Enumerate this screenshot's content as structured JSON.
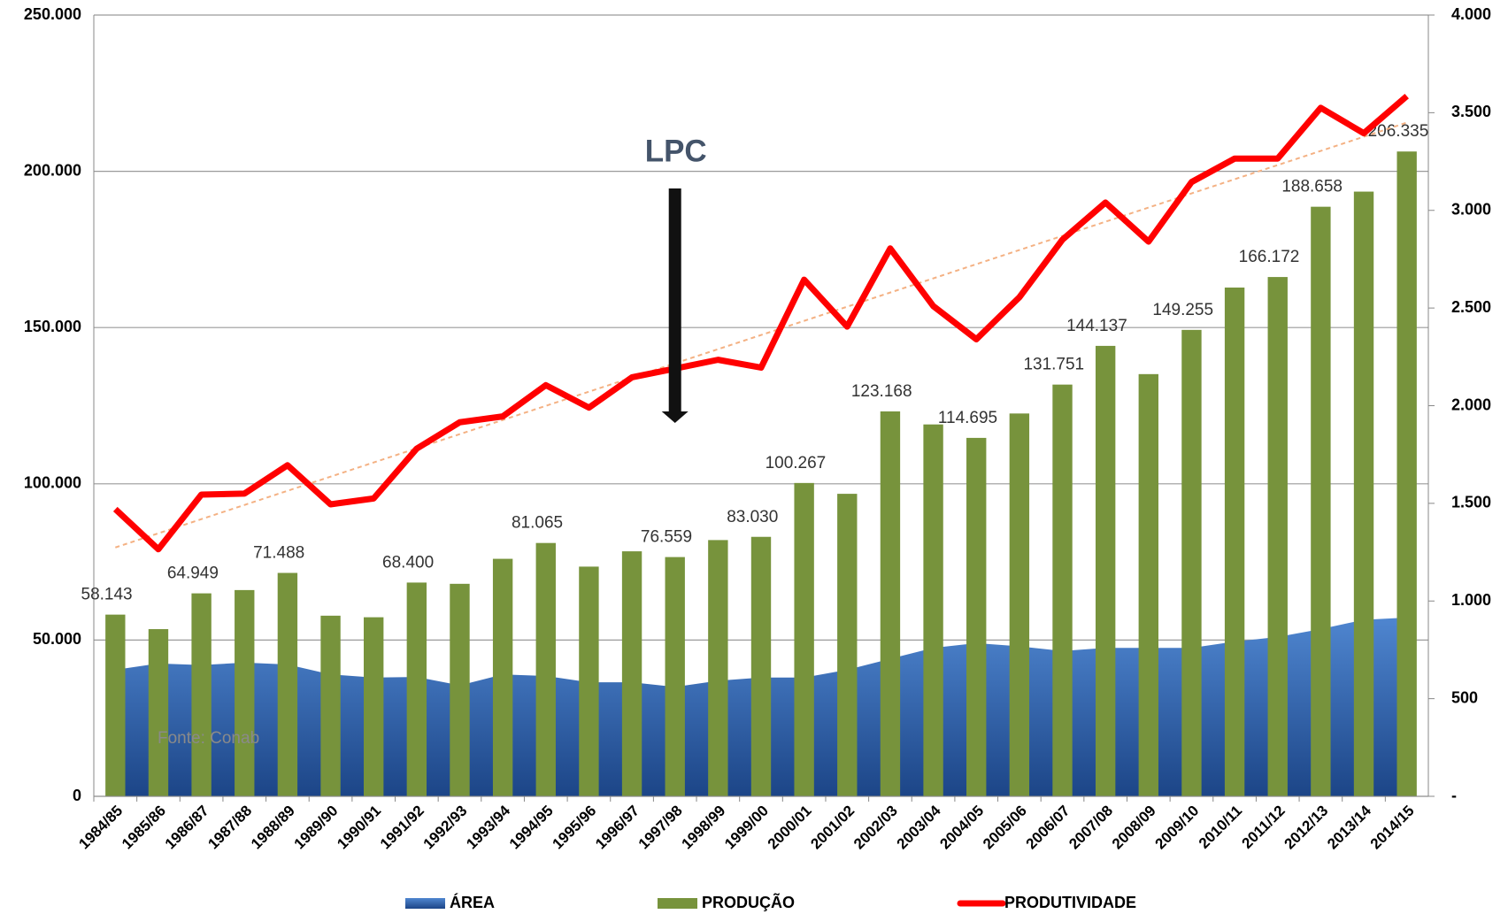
{
  "chart_data": {
    "type": "bar",
    "categories": [
      "1984/85",
      "1985/86",
      "1986/87",
      "1987/88",
      "1988/89",
      "1989/90",
      "1990/91",
      "1991/92",
      "1992/93",
      "1993/94",
      "1994/95",
      "1995/96",
      "1996/97",
      "1997/98",
      "1998/99",
      "1999/00",
      "2000/01",
      "2001/02",
      "2002/03",
      "2003/04",
      "2004/05",
      "2005/06",
      "2006/07",
      "2007/08",
      "2008/09",
      "2009/10",
      "2010/11",
      "2011/12",
      "2012/13",
      "2013/14",
      "2014/15"
    ],
    "series": [
      {
        "name": "ÁREA",
        "type": "area",
        "color": "#3a6fc0",
        "values": [
          40500,
          42500,
          42000,
          42800,
          42200,
          39000,
          38000,
          38200,
          35500,
          39000,
          38500,
          36500,
          36500,
          35000,
          37000,
          38000,
          38000,
          40500,
          44000,
          47500,
          49000,
          48000,
          46500,
          47500,
          47500,
          47500,
          49500,
          51000,
          53500,
          56500,
          57200
        ]
      },
      {
        "name": "PRODUÇÃO",
        "type": "bar",
        "color": "#77933c",
        "values": [
          58143,
          53500,
          64949,
          66000,
          71488,
          57800,
          57300,
          68400,
          68000,
          76000,
          81065,
          73500,
          78400,
          76559,
          82000,
          83030,
          100267,
          96800,
          123168,
          119000,
          114695,
          122500,
          131751,
          144137,
          135100,
          149255,
          162800,
          166172,
          188658,
          193500,
          206335
        ],
        "value_labels": [
          "58.143",
          null,
          "64.949",
          null,
          "71.488",
          null,
          null,
          "68.400",
          null,
          null,
          "81.065",
          null,
          null,
          "76.559",
          null,
          "83.030",
          "100.267",
          null,
          "123.168",
          null,
          "114.695",
          null,
          "131.751",
          "144.137",
          null,
          "149.255",
          null,
          "166.172",
          "188.658",
          null,
          "206.335"
        ]
      },
      {
        "name": "PRODUTIVIDADE",
        "type": "line",
        "axis": "y2",
        "color": "#ff0000",
        "values": [
          1470,
          1265,
          1545,
          1550,
          1695,
          1495,
          1525,
          1780,
          1915,
          1945,
          2105,
          1990,
          2145,
          2190,
          2235,
          2195,
          2645,
          2405,
          2805,
          2510,
          2340,
          2555,
          2850,
          3040,
          2840,
          3145,
          3265,
          3265,
          3525,
          3395,
          3585
        ]
      }
    ],
    "ylim": [
      0,
      250000
    ],
    "yticks": [
      0,
      {
        "value": 50000,
        "label": "50.000"
      },
      {
        "value": 100000,
        "label": "100.000"
      },
      {
        "value": 150000,
        "label": "150.000"
      },
      {
        "value": 200000,
        "label": "200.000"
      },
      {
        "value": 250000,
        "label": "250.000"
      }
    ],
    "y2lim": [
      0,
      4000
    ],
    "y2ticks": [
      {
        "value": 0,
        "label": "-"
      },
      500,
      {
        "value": 1000,
        "label": "1.000"
      },
      {
        "value": 1500,
        "label": "1.500"
      },
      {
        "value": 2000,
        "label": "2.000"
      },
      {
        "value": 2500,
        "label": "2.500"
      },
      {
        "value": 3000,
        "label": "3.000"
      },
      {
        "value": 3500,
        "label": "3.500"
      },
      {
        "value": 4000,
        "label": "4.000"
      }
    ],
    "grid": true,
    "trendline": true,
    "annotation": {
      "text": "LPC",
      "category": "1997/98"
    },
    "source": "Fonte: Conab",
    "legend": "bottom"
  }
}
